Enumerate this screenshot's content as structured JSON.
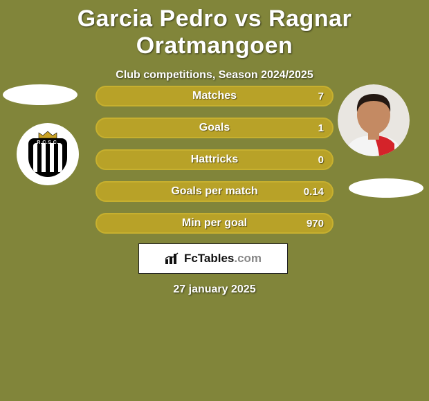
{
  "background_color": "#81853a",
  "title": "Garcia Pedro vs Ragnar Oratmangoen",
  "subtitle": "Club competitions, Season 2024/2025",
  "stat_bar": {
    "fill_color": "#b8a228",
    "border_color": "#c7b02f",
    "label_color": "#ffffff"
  },
  "stats": [
    {
      "label": "Matches",
      "right_value": "7"
    },
    {
      "label": "Goals",
      "right_value": "1"
    },
    {
      "label": "Hattricks",
      "right_value": "0"
    },
    {
      "label": "Goals per match",
      "right_value": "0.14"
    },
    {
      "label": "Min per goal",
      "right_value": "970"
    }
  ],
  "left_player": {
    "name": "Garcia Pedro",
    "club_badge_text": "R.C.S.C."
  },
  "right_player": {
    "name": "Ragnar Oratmangoen"
  },
  "watermark": {
    "brand": "FcTables",
    "suffix": ".com"
  },
  "date_text": "27 january 2025",
  "avatar_colors": {
    "skin": "#c48a63",
    "hair": "#241812",
    "shirt_light": "#f4f4f4",
    "shirt_red": "#d4232a"
  }
}
